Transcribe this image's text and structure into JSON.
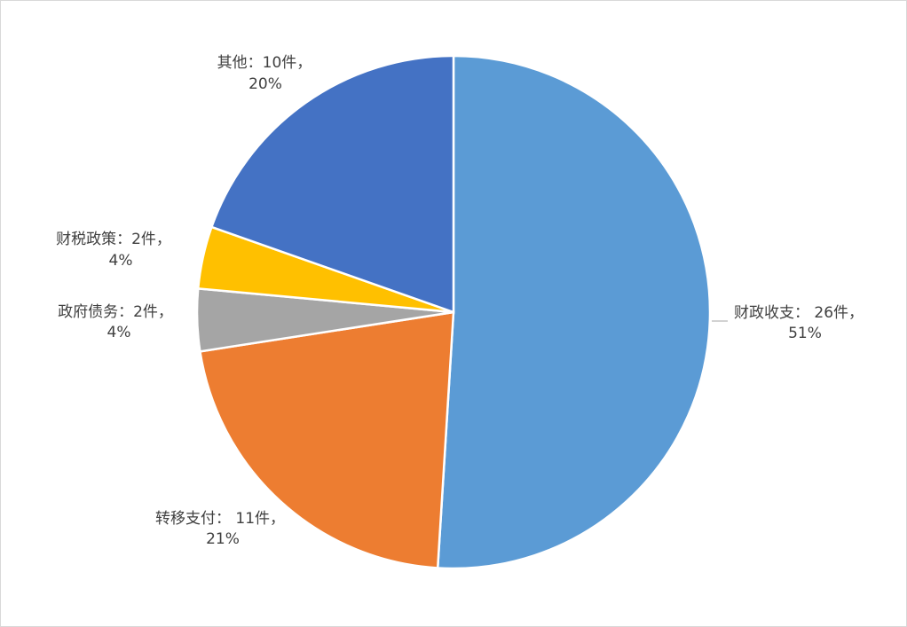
{
  "chart_data": {
    "type": "pie",
    "values": [
      26,
      11,
      2,
      2,
      10
    ],
    "value_labels": [
      "财政收支： 26件，",
      "转移支付： 11件，",
      "政府债务：2件，",
      "财税政策：2件，",
      "其他：10件，"
    ],
    "percent_labels": [
      "51%",
      "21%",
      "4%",
      "4%",
      "20%"
    ],
    "colors": [
      "#5b9bd5",
      "#ed7d31",
      "#a5a5a5",
      "#ffc000",
      "#4472c4"
    ]
  }
}
